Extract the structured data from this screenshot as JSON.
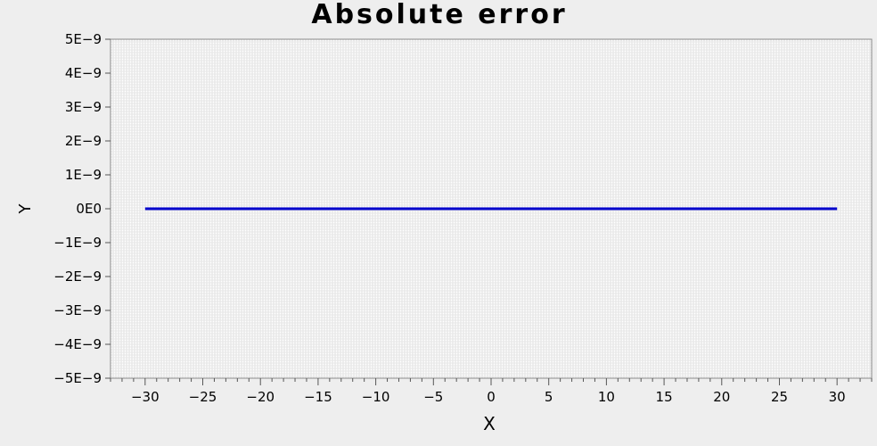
{
  "chart_data": {
    "type": "line",
    "title": "Absolute error",
    "xlabel": "X",
    "ylabel": "Y",
    "xlim": [
      -33,
      33
    ],
    "ylim": [
      -5e-09,
      5e-09
    ],
    "x_ticks": [
      -30,
      -25,
      -20,
      -15,
      -10,
      -5,
      0,
      5,
      10,
      15,
      20,
      25,
      30
    ],
    "x_tick_labels": [
      "−30",
      "−25",
      "−20",
      "−15",
      "−10",
      "−5",
      "0",
      "5",
      "10",
      "15",
      "20",
      "25",
      "30"
    ],
    "y_ticks": [
      5e-09,
      4e-09,
      3e-09,
      2e-09,
      1e-09,
      0,
      -1e-09,
      -2e-09,
      -3e-09,
      -4e-09,
      -5e-09
    ],
    "y_tick_labels": [
      "5E−9",
      "4E−9",
      "3E−9",
      "2E−9",
      "1E−9",
      "0E0",
      "−1E−9",
      "−2E−9",
      "−3E−9",
      "−4E−9",
      "−5E−9"
    ],
    "grid": true,
    "series": [
      {
        "color": "#0000cc",
        "x": [
          -30,
          30
        ],
        "y": [
          0,
          0
        ]
      }
    ]
  }
}
